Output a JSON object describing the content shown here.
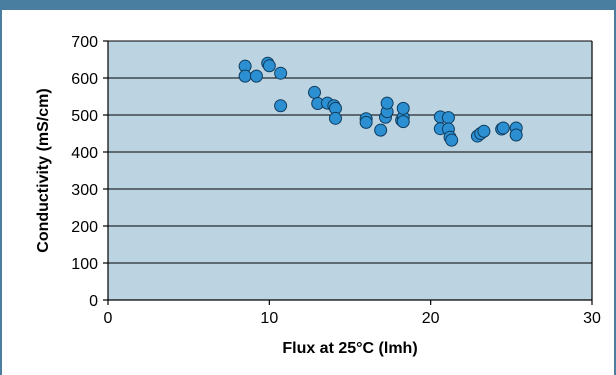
{
  "colors": {
    "frame": "#4a7ea0",
    "plot_background": "#bcd3e2",
    "marker_fill": "#2b8fd1",
    "marker_stroke": "#0f3c5e",
    "gridline": "#000000"
  },
  "chart_data": {
    "type": "scatter",
    "title": "",
    "xlabel": "Flux at 25°C (lmh)",
    "ylabel": "Conductivity (mS/cm)",
    "xlim": [
      0,
      30
    ],
    "ylim": [
      0,
      700
    ],
    "xticks": [
      0,
      10,
      20,
      30
    ],
    "yticks": [
      0,
      100,
      200,
      300,
      400,
      500,
      600,
      700
    ],
    "x_tick_labels": [
      "0",
      "10",
      "20",
      "30"
    ],
    "y_tick_labels": [
      "0",
      "100",
      "200",
      "300",
      "400",
      "500",
      "600",
      "700"
    ],
    "grid": "horizontal",
    "legend": "none",
    "points": [
      {
        "x": 8.5,
        "y": 632
      },
      {
        "x": 8.5,
        "y": 605
      },
      {
        "x": 9.2,
        "y": 605
      },
      {
        "x": 9.9,
        "y": 640
      },
      {
        "x": 10.0,
        "y": 633
      },
      {
        "x": 10.7,
        "y": 613
      },
      {
        "x": 10.7,
        "y": 525
      },
      {
        "x": 12.8,
        "y": 561
      },
      {
        "x": 13.0,
        "y": 531
      },
      {
        "x": 13.6,
        "y": 532
      },
      {
        "x": 14.0,
        "y": 525
      },
      {
        "x": 14.1,
        "y": 518
      },
      {
        "x": 14.1,
        "y": 491
      },
      {
        "x": 16.0,
        "y": 490
      },
      {
        "x": 16.0,
        "y": 480
      },
      {
        "x": 16.9,
        "y": 459
      },
      {
        "x": 17.2,
        "y": 494
      },
      {
        "x": 17.3,
        "y": 509
      },
      {
        "x": 17.3,
        "y": 532
      },
      {
        "x": 18.2,
        "y": 486
      },
      {
        "x": 18.3,
        "y": 494
      },
      {
        "x": 18.3,
        "y": 518
      },
      {
        "x": 18.3,
        "y": 482
      },
      {
        "x": 20.6,
        "y": 495
      },
      {
        "x": 20.6,
        "y": 463
      },
      {
        "x": 21.1,
        "y": 493
      },
      {
        "x": 21.1,
        "y": 462
      },
      {
        "x": 21.2,
        "y": 440
      },
      {
        "x": 21.3,
        "y": 432
      },
      {
        "x": 22.9,
        "y": 443
      },
      {
        "x": 23.1,
        "y": 450
      },
      {
        "x": 23.3,
        "y": 456
      },
      {
        "x": 24.4,
        "y": 462
      },
      {
        "x": 24.5,
        "y": 465
      },
      {
        "x": 25.3,
        "y": 465
      },
      {
        "x": 25.3,
        "y": 446
      }
    ]
  }
}
